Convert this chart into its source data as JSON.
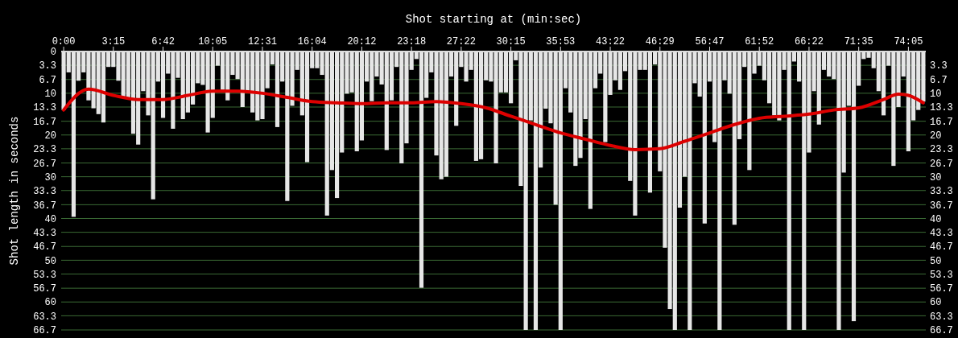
{
  "chart_data": {
    "type": "bar",
    "title": "Shot starting at (min:sec)",
    "ylabel": "Shot length in seconds",
    "categories": [
      "0:00",
      null,
      null,
      null,
      null,
      null,
      null,
      null,
      null,
      null,
      "3:15",
      null,
      null,
      null,
      null,
      null,
      null,
      null,
      null,
      null,
      "6:42",
      null,
      null,
      null,
      null,
      null,
      null,
      null,
      null,
      null,
      "10:05",
      null,
      null,
      null,
      null,
      null,
      null,
      null,
      null,
      null,
      "12:31",
      null,
      null,
      null,
      null,
      null,
      null,
      null,
      null,
      null,
      "16:04",
      null,
      null,
      null,
      null,
      null,
      null,
      null,
      null,
      null,
      "20:12",
      null,
      null,
      null,
      null,
      null,
      null,
      null,
      null,
      null,
      "23:18",
      null,
      null,
      null,
      null,
      null,
      null,
      null,
      null,
      null,
      "27:22",
      null,
      null,
      null,
      null,
      null,
      null,
      null,
      null,
      null,
      "30:15",
      null,
      null,
      null,
      null,
      null,
      null,
      null,
      null,
      null,
      "35:53",
      null,
      null,
      null,
      null,
      null,
      null,
      null,
      null,
      null,
      "43:22",
      null,
      null,
      null,
      null,
      null,
      null,
      null,
      null,
      null,
      "46:29",
      null,
      null,
      null,
      null,
      null,
      null,
      null,
      null,
      null,
      "56:47",
      null,
      null,
      null,
      null,
      null,
      null,
      null,
      null,
      null,
      "61:52",
      null,
      null,
      null,
      null,
      null,
      null,
      null,
      null,
      null,
      "66:22",
      null,
      null,
      null,
      null,
      null,
      null,
      null,
      null,
      null,
      "71:35",
      null,
      null,
      null,
      null,
      null,
      null,
      null,
      null,
      null,
      "74:05",
      null,
      null,
      null
    ],
    "series": [
      {
        "color": "#e6e6e6",
        "values": [
          14,
          5,
          39.6,
          7,
          5,
          11.7,
          13.6,
          15,
          17,
          3.7,
          3.7,
          7,
          10.8,
          11.4,
          19.7,
          22.3,
          9.5,
          15.3,
          35.4,
          7.2,
          15.9,
          5.3,
          18.5,
          6.3,
          16.2,
          14.6,
          12.7,
          7.6,
          8,
          19.4,
          15.9,
          3.4,
          9.2,
          11.7,
          5.6,
          6.6,
          13.3,
          9.5,
          14.6,
          16.5,
          16.2,
          8.8,
          3.1,
          18.1,
          7.2,
          35.8,
          13,
          4.4,
          15.3,
          26.5,
          4,
          4,
          5.6,
          39.3,
          28.4,
          35.1,
          24.2,
          10.1,
          9.8,
          23.9,
          21.3,
          7.2,
          11.9,
          6,
          7.9,
          23.6,
          11.7,
          3.7,
          26.8,
          22,
          4.4,
          1.8,
          56.6,
          11.1,
          5,
          24.9,
          30.6,
          30,
          6,
          17.8,
          3.7,
          7.2,
          4.4,
          26.2,
          25.8,
          6.9,
          7.2,
          26.8,
          9.8,
          9.8,
          12.4,
          2.1,
          32.2,
          66.7,
          16.5,
          66.7,
          27.8,
          13.7,
          17.2,
          36.7,
          66.7,
          8.8,
          14.6,
          27.4,
          25.5,
          16.2,
          37.7,
          8.8,
          5.3,
          21.7,
          10.4,
          6.9,
          9.2,
          4.7,
          31,
          39.3,
          4.4,
          4.4,
          33.8,
          3.1,
          28.7,
          47,
          61.7,
          66.7,
          37.4,
          30,
          66.7,
          7.6,
          10.8,
          41.2,
          7.2,
          21.7,
          66.7,
          6.9,
          10.1,
          41.5,
          21,
          3.7,
          28.4,
          5.3,
          3.4,
          6.9,
          12.4,
          15.3,
          16.5,
          4.4,
          66.7,
          2.4,
          7.2,
          66.7,
          24.2,
          9.5,
          17.5,
          4.4,
          6,
          6.6,
          66.7,
          29,
          13,
          64.6,
          8.2,
          1.8,
          1.5,
          4,
          9.5,
          15.3,
          3.4,
          27.4,
          13.3,
          6,
          23.9,
          16.5,
          14,
          12
        ]
      },
      {
        "type": "line",
        "color": "#dd0000",
        "values": [
          14,
          null,
          null,
          null,
          null,
          9,
          null,
          null,
          null,
          null,
          10.5,
          null,
          null,
          null,
          null,
          11.5,
          null,
          null,
          null,
          null,
          11.5,
          null,
          null,
          null,
          null,
          10.5,
          null,
          null,
          null,
          null,
          9.5,
          null,
          null,
          null,
          null,
          9.5,
          null,
          null,
          null,
          null,
          10,
          null,
          null,
          null,
          null,
          11,
          null,
          null,
          null,
          null,
          12,
          null,
          null,
          null,
          null,
          12.3,
          null,
          null,
          null,
          null,
          12.5,
          null,
          null,
          null,
          null,
          12.3,
          null,
          null,
          null,
          null,
          12.3,
          null,
          null,
          null,
          null,
          12,
          null,
          null,
          null,
          null,
          12.5,
          null,
          null,
          null,
          null,
          13.5,
          null,
          null,
          null,
          null,
          15.5,
          null,
          null,
          null,
          null,
          17.5,
          null,
          null,
          null,
          null,
          19.5,
          null,
          null,
          null,
          null,
          21,
          null,
          null,
          null,
          null,
          22.5,
          null,
          null,
          null,
          null,
          23.5,
          null,
          null,
          null,
          null,
          23.3,
          null,
          null,
          null,
          null,
          21.5,
          null,
          null,
          null,
          null,
          19.5,
          null,
          null,
          null,
          null,
          17.5,
          null,
          null,
          null,
          null,
          16,
          null,
          null,
          null,
          null,
          15.5,
          null,
          null,
          null,
          null,
          15,
          null,
          null,
          null,
          null,
          14,
          null,
          null,
          null,
          null,
          13.5,
          null,
          null,
          null,
          null,
          11.5,
          null,
          null,
          10.2,
          null,
          10.5,
          null,
          null,
          12.3
        ]
      }
    ],
    "ylim": [
      66.7,
      0
    ],
    "yticks": [
      0,
      3.3,
      6.7,
      10,
      13.3,
      16.7,
      20,
      23.3,
      26.7,
      30,
      33.3,
      36.7,
      40,
      43.3,
      46.7,
      50,
      53.3,
      56.7,
      60,
      63.3,
      66.7
    ],
    "y2lim": [
      66.7,
      0
    ],
    "y2ticks": [
      3.3,
      6.7,
      10,
      13.3,
      16.7,
      20,
      23.3,
      26.7,
      30,
      33.3,
      36.7,
      40,
      43.3,
      46.7,
      50,
      53.3,
      56.7,
      60,
      63.3,
      66.7
    ],
    "grid": "y"
  }
}
